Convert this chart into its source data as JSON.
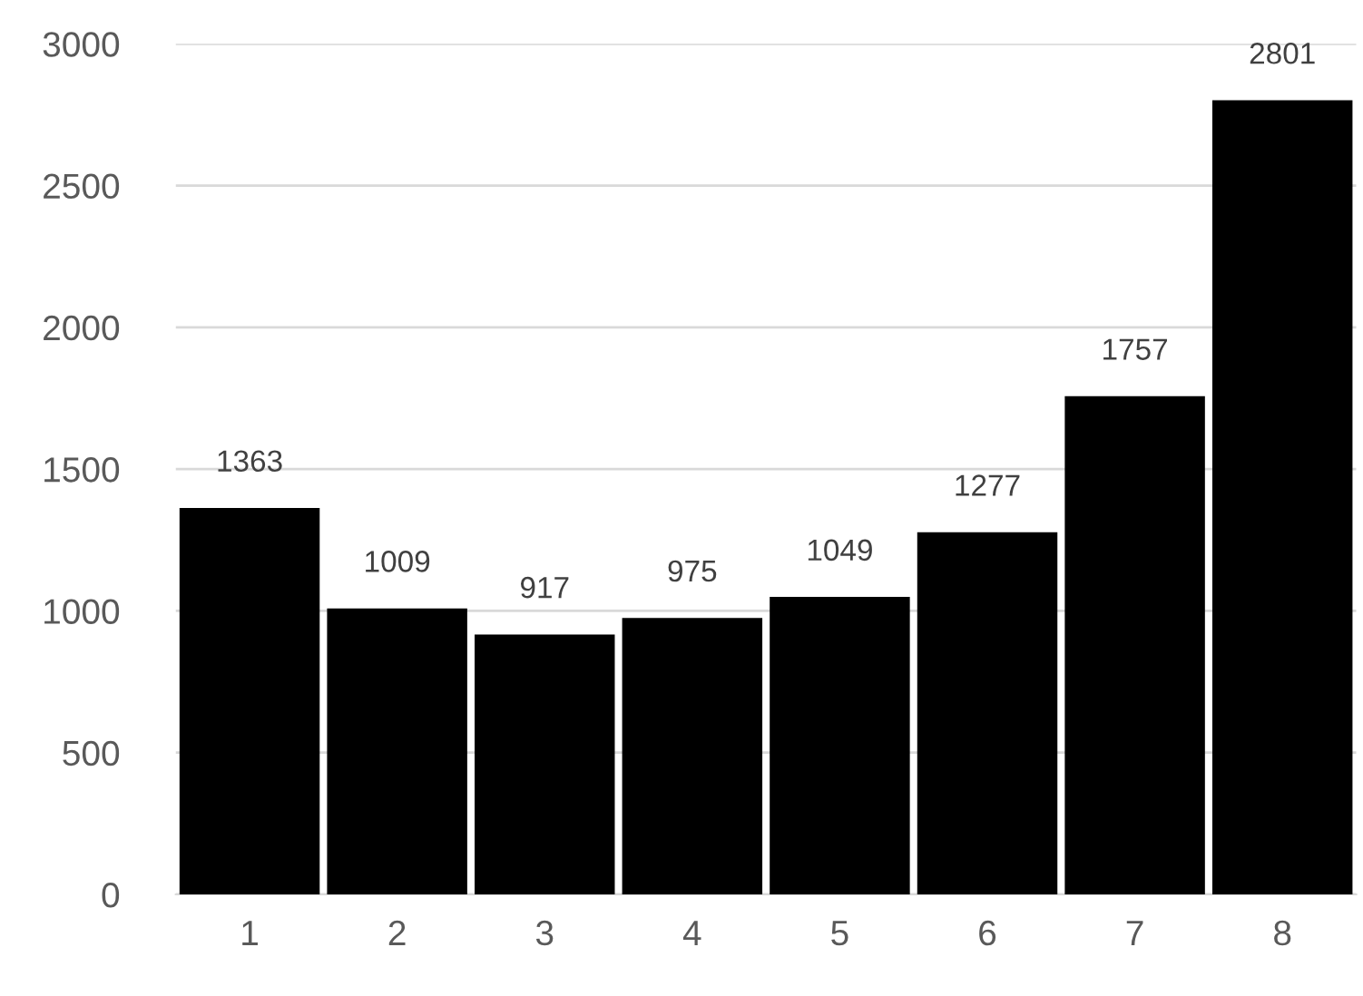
{
  "chart_data": {
    "type": "bar",
    "categories": [
      "1",
      "2",
      "3",
      "4",
      "5",
      "6",
      "7",
      "8"
    ],
    "values": [
      1363,
      1009,
      917,
      975,
      1049,
      1277,
      1757,
      2801
    ],
    "color": "#000000",
    "ylim": [
      0,
      3000
    ],
    "yticks": [
      0,
      500,
      1000,
      1500,
      2000,
      2500,
      3000
    ],
    "grid": "y",
    "data_labels": true
  }
}
